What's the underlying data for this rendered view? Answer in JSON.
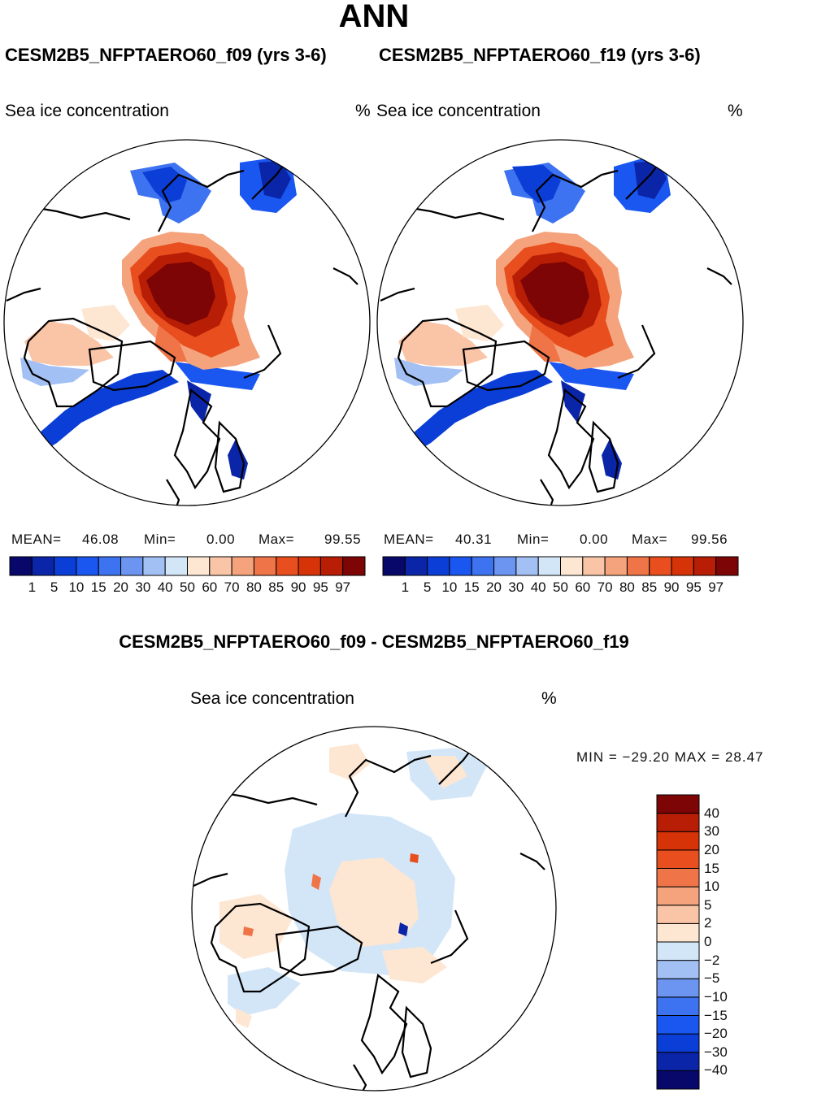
{
  "title": "ANN",
  "panels": [
    {
      "case_title": "CESM2B5_NFPTAERO60_f09 (yrs 3-6)",
      "variable": "Sea ice concentration",
      "units": "%",
      "mean_label": "MEAN=",
      "mean": "46.08",
      "min_label": "Min=",
      "min": "0.00",
      "max_label": "Max=",
      "max": "99.55"
    },
    {
      "case_title": "CESM2B5_NFPTAERO60_f19 (yrs 3-6)",
      "variable": "Sea ice concentration",
      "units": "%",
      "mean_label": "MEAN=",
      "mean": "40.31",
      "min_label": "Min=",
      "min": "0.00",
      "max_label": "Max=",
      "max": "99.56"
    }
  ],
  "diff": {
    "title": "CESM2B5_NFPTAERO60_f09 - CESM2B5_NFPTAERO60_f19",
    "variable": "Sea ice concentration",
    "units": "%",
    "minmax": "MIN = −29.20 MAX =   28.47"
  },
  "chart_data": [
    {
      "type": "heatmap",
      "projection": "polar-stereographic (north)",
      "title": "CESM2B5_NFPTAERO60_f09 (yrs 3-6)",
      "variable": "Sea ice concentration",
      "units": "%",
      "stats": {
        "mean": 46.08,
        "min": 0.0,
        "max": 99.55
      },
      "colorbar": {
        "levels": [
          "1",
          "5",
          "10",
          "15",
          "20",
          "30",
          "40",
          "50",
          "60",
          "70",
          "80",
          "85",
          "90",
          "95",
          "97"
        ],
        "colors": [
          "#08086b",
          "#0a25a8",
          "#0b3ed6",
          "#1a56f0",
          "#3d73f0",
          "#6b95f0",
          "#a3c0f5",
          "#d3e6f8",
          "#fde6d2",
          "#f9c5a6",
          "#f4a37c",
          "#ef7448",
          "#e84e1e",
          "#d63309",
          "#b81e05",
          "#7e0505"
        ]
      }
    },
    {
      "type": "heatmap",
      "projection": "polar-stereographic (north)",
      "title": "CESM2B5_NFPTAERO60_f19 (yrs 3-6)",
      "variable": "Sea ice concentration",
      "units": "%",
      "stats": {
        "mean": 40.31,
        "min": 0.0,
        "max": 99.56
      },
      "colorbar": {
        "levels": [
          "1",
          "5",
          "10",
          "15",
          "20",
          "30",
          "40",
          "50",
          "60",
          "70",
          "80",
          "85",
          "90",
          "95",
          "97"
        ],
        "colors": [
          "#08086b",
          "#0a25a8",
          "#0b3ed6",
          "#1a56f0",
          "#3d73f0",
          "#6b95f0",
          "#a3c0f5",
          "#d3e6f8",
          "#fde6d2",
          "#f9c5a6",
          "#f4a37c",
          "#ef7448",
          "#e84e1e",
          "#d63309",
          "#b81e05",
          "#7e0505"
        ]
      }
    },
    {
      "type": "heatmap",
      "projection": "polar-stereographic (north)",
      "title": "CESM2B5_NFPTAERO60_f09 - CESM2B5_NFPTAERO60_f19",
      "variable": "Sea ice concentration",
      "units": "%",
      "stats": {
        "min": -29.2,
        "max": 28.47
      },
      "colorbar": {
        "levels": [
          "−40",
          "−30",
          "−20",
          "−15",
          "−10",
          "−5",
          "−2",
          "0",
          "2",
          "5",
          "10",
          "15",
          "20",
          "30",
          "40"
        ],
        "colors": [
          "#08086b",
          "#0a25a8",
          "#0b3ed6",
          "#1a56f0",
          "#3d73f0",
          "#6b95f0",
          "#a3c0f5",
          "#d3e6f8",
          "#fde6d2",
          "#f9c5a6",
          "#f4a37c",
          "#ef7448",
          "#e84e1e",
          "#d63309",
          "#b81e05",
          "#7e0505"
        ]
      }
    }
  ]
}
